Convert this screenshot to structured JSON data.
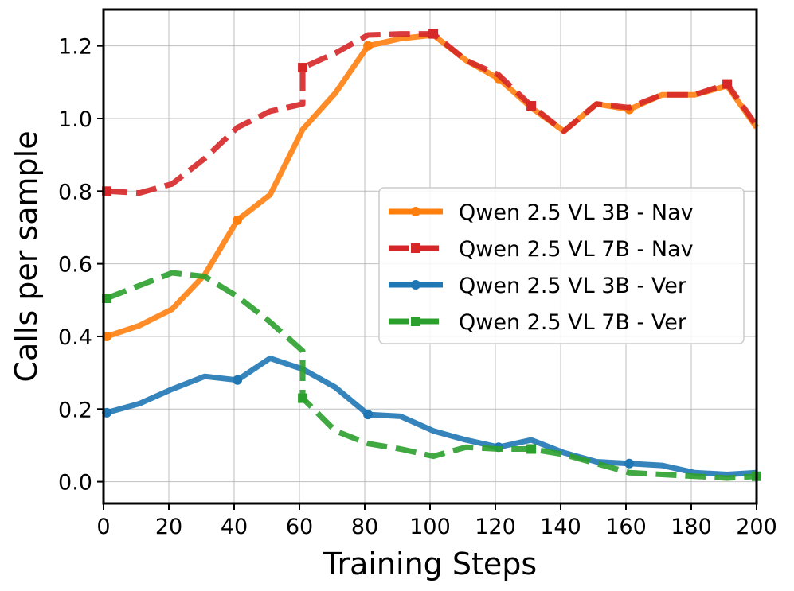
{
  "chart_data": {
    "type": "line",
    "title": "",
    "xlabel": "Training Steps",
    "ylabel": "Calls per sample",
    "xlim": [
      0,
      200
    ],
    "ylim": [
      -0.06,
      1.3
    ],
    "xticks": [
      0,
      20,
      40,
      60,
      80,
      100,
      120,
      140,
      160,
      180,
      200
    ],
    "yticks": [
      0.0,
      0.2,
      0.4,
      0.6,
      0.8,
      1.0,
      1.2
    ],
    "ytick_labels": [
      "0.0",
      "0.2",
      "0.4",
      "0.6",
      "0.8",
      "1.0",
      "1.2"
    ],
    "grid": true,
    "legend_position": "center-right",
    "series": [
      {
        "name": "Qwen 2.5 VL 3B - Nav",
        "color": "#ff7f0e",
        "dash": "solid",
        "marker": "circle",
        "x": [
          1,
          11,
          21,
          31,
          41,
          51,
          61,
          71,
          81,
          91,
          101,
          111,
          121,
          131,
          141,
          151,
          161,
          171,
          181,
          191,
          200
        ],
        "values": [
          0.4,
          0.43,
          0.475,
          0.57,
          0.72,
          0.79,
          0.97,
          1.07,
          1.2,
          1.22,
          1.23,
          1.16,
          1.11,
          1.03,
          0.965,
          1.04,
          1.025,
          1.065,
          1.065,
          1.09,
          0.975
        ],
        "marker_x": [
          1,
          41,
          81,
          121,
          161
        ]
      },
      {
        "name": "Qwen 2.5 VL 7B - Nav",
        "color": "#d62728",
        "dash": "dashed",
        "marker": "square",
        "x": [
          1,
          11,
          21,
          31,
          41,
          51,
          61,
          61,
          71,
          81,
          91,
          101,
          111,
          121,
          131,
          141,
          151,
          161,
          171,
          181,
          191,
          200
        ],
        "values": [
          0.8,
          0.795,
          0.82,
          0.89,
          0.975,
          1.02,
          1.04,
          1.14,
          1.18,
          1.23,
          1.233,
          1.233,
          1.16,
          1.12,
          1.035,
          0.965,
          1.04,
          1.03,
          1.065,
          1.065,
          1.095,
          0.98
        ],
        "marker_x": [
          1,
          61,
          101,
          131,
          191
        ]
      },
      {
        "name": "Qwen 2.5 VL 3B - Ver",
        "color": "#1f77b4",
        "dash": "solid",
        "marker": "circle",
        "x": [
          1,
          11,
          21,
          31,
          41,
          51,
          61,
          71,
          81,
          91,
          101,
          111,
          121,
          131,
          141,
          151,
          161,
          171,
          181,
          191,
          200
        ],
        "values": [
          0.19,
          0.215,
          0.255,
          0.29,
          0.28,
          0.34,
          0.31,
          0.26,
          0.185,
          0.18,
          0.14,
          0.115,
          0.095,
          0.115,
          0.08,
          0.055,
          0.05,
          0.045,
          0.025,
          0.02,
          0.025
        ],
        "marker_x": [
          1,
          41,
          81,
          121,
          161
        ]
      },
      {
        "name": "Qwen 2.5 VL 7B - Ver",
        "color": "#2ca02c",
        "dash": "dashed",
        "marker": "square",
        "x": [
          1,
          11,
          21,
          31,
          41,
          51,
          61,
          61,
          71,
          81,
          91,
          101,
          111,
          121,
          131,
          141,
          151,
          161,
          171,
          181,
          191,
          200
        ],
        "values": [
          0.505,
          0.54,
          0.575,
          0.565,
          0.51,
          0.44,
          0.36,
          0.23,
          0.14,
          0.105,
          0.09,
          0.07,
          0.095,
          0.09,
          0.09,
          0.075,
          0.05,
          0.025,
          0.02,
          0.015,
          0.01,
          0.015
        ],
        "marker_x": [
          1,
          61,
          131,
          200
        ]
      }
    ]
  }
}
